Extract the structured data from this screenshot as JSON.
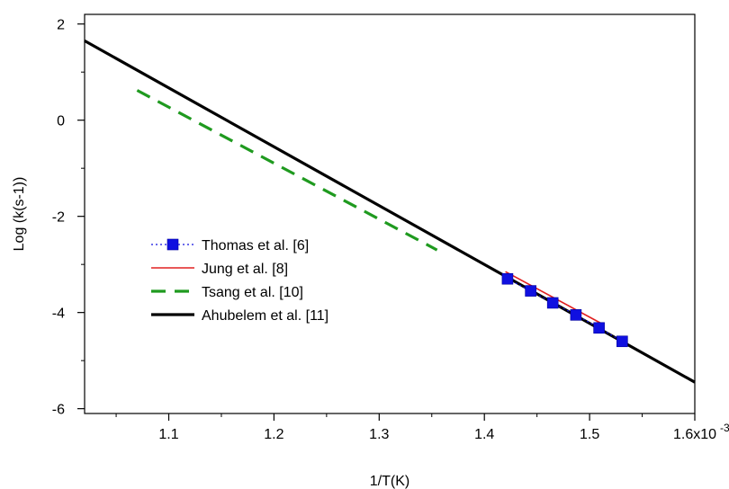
{
  "chart_data": {
    "type": "line",
    "xlabel": "1/T(K)",
    "ylabel": "Log (k(s-1))",
    "xlim": [
      0.00102,
      0.0016
    ],
    "ylim": [
      -6.1,
      2.2
    ],
    "x_ticks": [
      0.0011,
      0.0012,
      0.0013,
      0.0014,
      0.0015,
      0.0016
    ],
    "x_tick_labels": [
      "1.1",
      "1.2",
      "1.3",
      "1.4",
      "1.5",
      "1.6x10"
    ],
    "x_tick_exponent": "-3",
    "y_ticks": [
      2,
      0,
      -2,
      -4,
      -6
    ],
    "y_tick_labels": [
      "2",
      "0",
      "-2",
      "-4",
      "-6"
    ],
    "grid": false,
    "legend_position": "center-left",
    "series": [
      {
        "name": "Thomas et al. [6]",
        "style": "dotted-square-markers",
        "color": "#1010e0",
        "x": [
          0.001422,
          0.001444,
          0.001465,
          0.001487,
          0.001509,
          0.001531
        ],
        "y": [
          -3.3,
          -3.55,
          -3.8,
          -4.05,
          -4.32,
          -4.6
        ]
      },
      {
        "name": "Jung et al. [8]",
        "style": "thin-solid",
        "color": "#e02020",
        "x": [
          0.00142,
          0.001513
        ],
        "y": [
          -3.15,
          -4.25
        ]
      },
      {
        "name": "Tsang et al. [10]",
        "style": "dashed",
        "color": "#1f9a1f",
        "x": [
          0.00107,
          0.001355
        ],
        "y": [
          0.62,
          -2.7
        ]
      },
      {
        "name": "Ahubelem et al. [11]",
        "style": "thick-solid",
        "color": "#000000",
        "x": [
          0.00102,
          0.0016
        ],
        "y": [
          1.65,
          -5.45
        ]
      }
    ]
  }
}
